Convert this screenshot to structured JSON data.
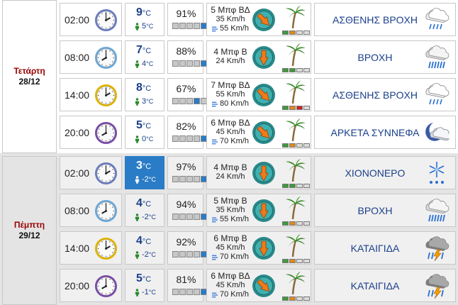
{
  "days": [
    {
      "name": "Τετάρτη",
      "date": "28/12",
      "rows": [
        {
          "time": "02:00",
          "temp": "9",
          "feels": "5",
          "hum": "91%",
          "hum_level": 0.91,
          "wind": "5 Μπφ ΒΔ",
          "wind_speed": "35 Km/h",
          "gust": "55 Km/h",
          "wind_dir": "NW",
          "wind_levels": [
            "g",
            "o",
            "",
            ""
          ],
          "desc": "ΑΣΘΕΝΗΣ ΒΡΟΧΗ",
          "icon": "light-rain-icon",
          "clock_color": "#6a7cc0"
        },
        {
          "time": "08:00",
          "temp": "7",
          "feels": "4",
          "hum": "88%",
          "hum_level": 0.88,
          "wind": "4 Μπφ Β",
          "wind_speed": "24 Km/h",
          "gust": "",
          "wind_dir": "N",
          "wind_levels": [
            "g",
            "g",
            "",
            ""
          ],
          "desc": "ΒΡΟΧΗ",
          "icon": "rain-icon",
          "clock_color": "#6aa8d8"
        },
        {
          "time": "14:00",
          "temp": "8",
          "feels": "3",
          "hum": "67%",
          "hum_level": 0.67,
          "wind": "7 Μπφ ΒΔ",
          "wind_speed": "55 Km/h",
          "gust": "80 Km/h",
          "wind_dir": "NW",
          "wind_levels": [
            "g",
            "o",
            "r",
            ""
          ],
          "desc": "ΑΣΘΕΝΗΣ ΒΡΟΧΗ",
          "icon": "light-rain-icon",
          "clock_color": "#e0b400"
        },
        {
          "time": "20:00",
          "temp": "5",
          "feels": "0",
          "hum": "82%",
          "hum_level": 0.82,
          "wind": "6 Μπφ ΒΔ",
          "wind_speed": "45 Km/h",
          "gust": "70 Km/h",
          "wind_dir": "NW",
          "wind_levels": [
            "g",
            "o",
            "",
            ""
          ],
          "desc": "ΑΡΚΕΤΑ ΣΥΝΝΕΦΑ",
          "icon": "night-cloudy-icon",
          "clock_color": "#7a4aa8"
        }
      ]
    },
    {
      "name": "Πέμπτη",
      "date": "29/12",
      "rows": [
        {
          "time": "02:00",
          "temp": "3",
          "feels": "-2",
          "hum": "97%",
          "hum_level": 0.97,
          "wind": "4 Μπφ Β",
          "wind_speed": "24 Km/h",
          "gust": "",
          "wind_dir": "N",
          "wind_levels": [
            "g",
            "g",
            "",
            ""
          ],
          "desc": "ΧΙΟΝΟΝΕΡΟ",
          "icon": "sleet-icon",
          "clock_color": "#6a7cc0",
          "highlight": true
        },
        {
          "time": "08:00",
          "temp": "4",
          "feels": "-2",
          "hum": "94%",
          "hum_level": 0.94,
          "wind": "5 Μπφ Β",
          "wind_speed": "35 Km/h",
          "gust": "55 Km/h",
          "wind_dir": "N",
          "wind_levels": [
            "g",
            "o",
            "",
            ""
          ],
          "desc": "ΒΡΟΧΗ",
          "icon": "rain-icon",
          "clock_color": "#6aa8d8"
        },
        {
          "time": "14:00",
          "temp": "4",
          "feels": "-2",
          "hum": "92%",
          "hum_level": 0.92,
          "wind": "6 Μπφ Β",
          "wind_speed": "45 Km/h",
          "gust": "70 Km/h",
          "wind_dir": "N",
          "wind_levels": [
            "g",
            "o",
            "",
            ""
          ],
          "desc": "ΚΑΤΑΙΓΙΔΑ",
          "icon": "thunderstorm-icon",
          "clock_color": "#e0b400"
        },
        {
          "time": "20:00",
          "temp": "5",
          "feels": "-1",
          "hum": "81%",
          "hum_level": 0.81,
          "wind": "6 Μπφ ΒΔ",
          "wind_speed": "45 Km/h",
          "gust": "70 Km/h",
          "wind_dir": "NW",
          "wind_levels": [
            "g",
            "o",
            "",
            ""
          ],
          "desc": "ΚΑΤΑΙΓΙΔΑ",
          "icon": "thunderstorm-icon",
          "clock_color": "#7a4aa8"
        }
      ]
    }
  ],
  "units": {
    "celsius": "°C"
  }
}
